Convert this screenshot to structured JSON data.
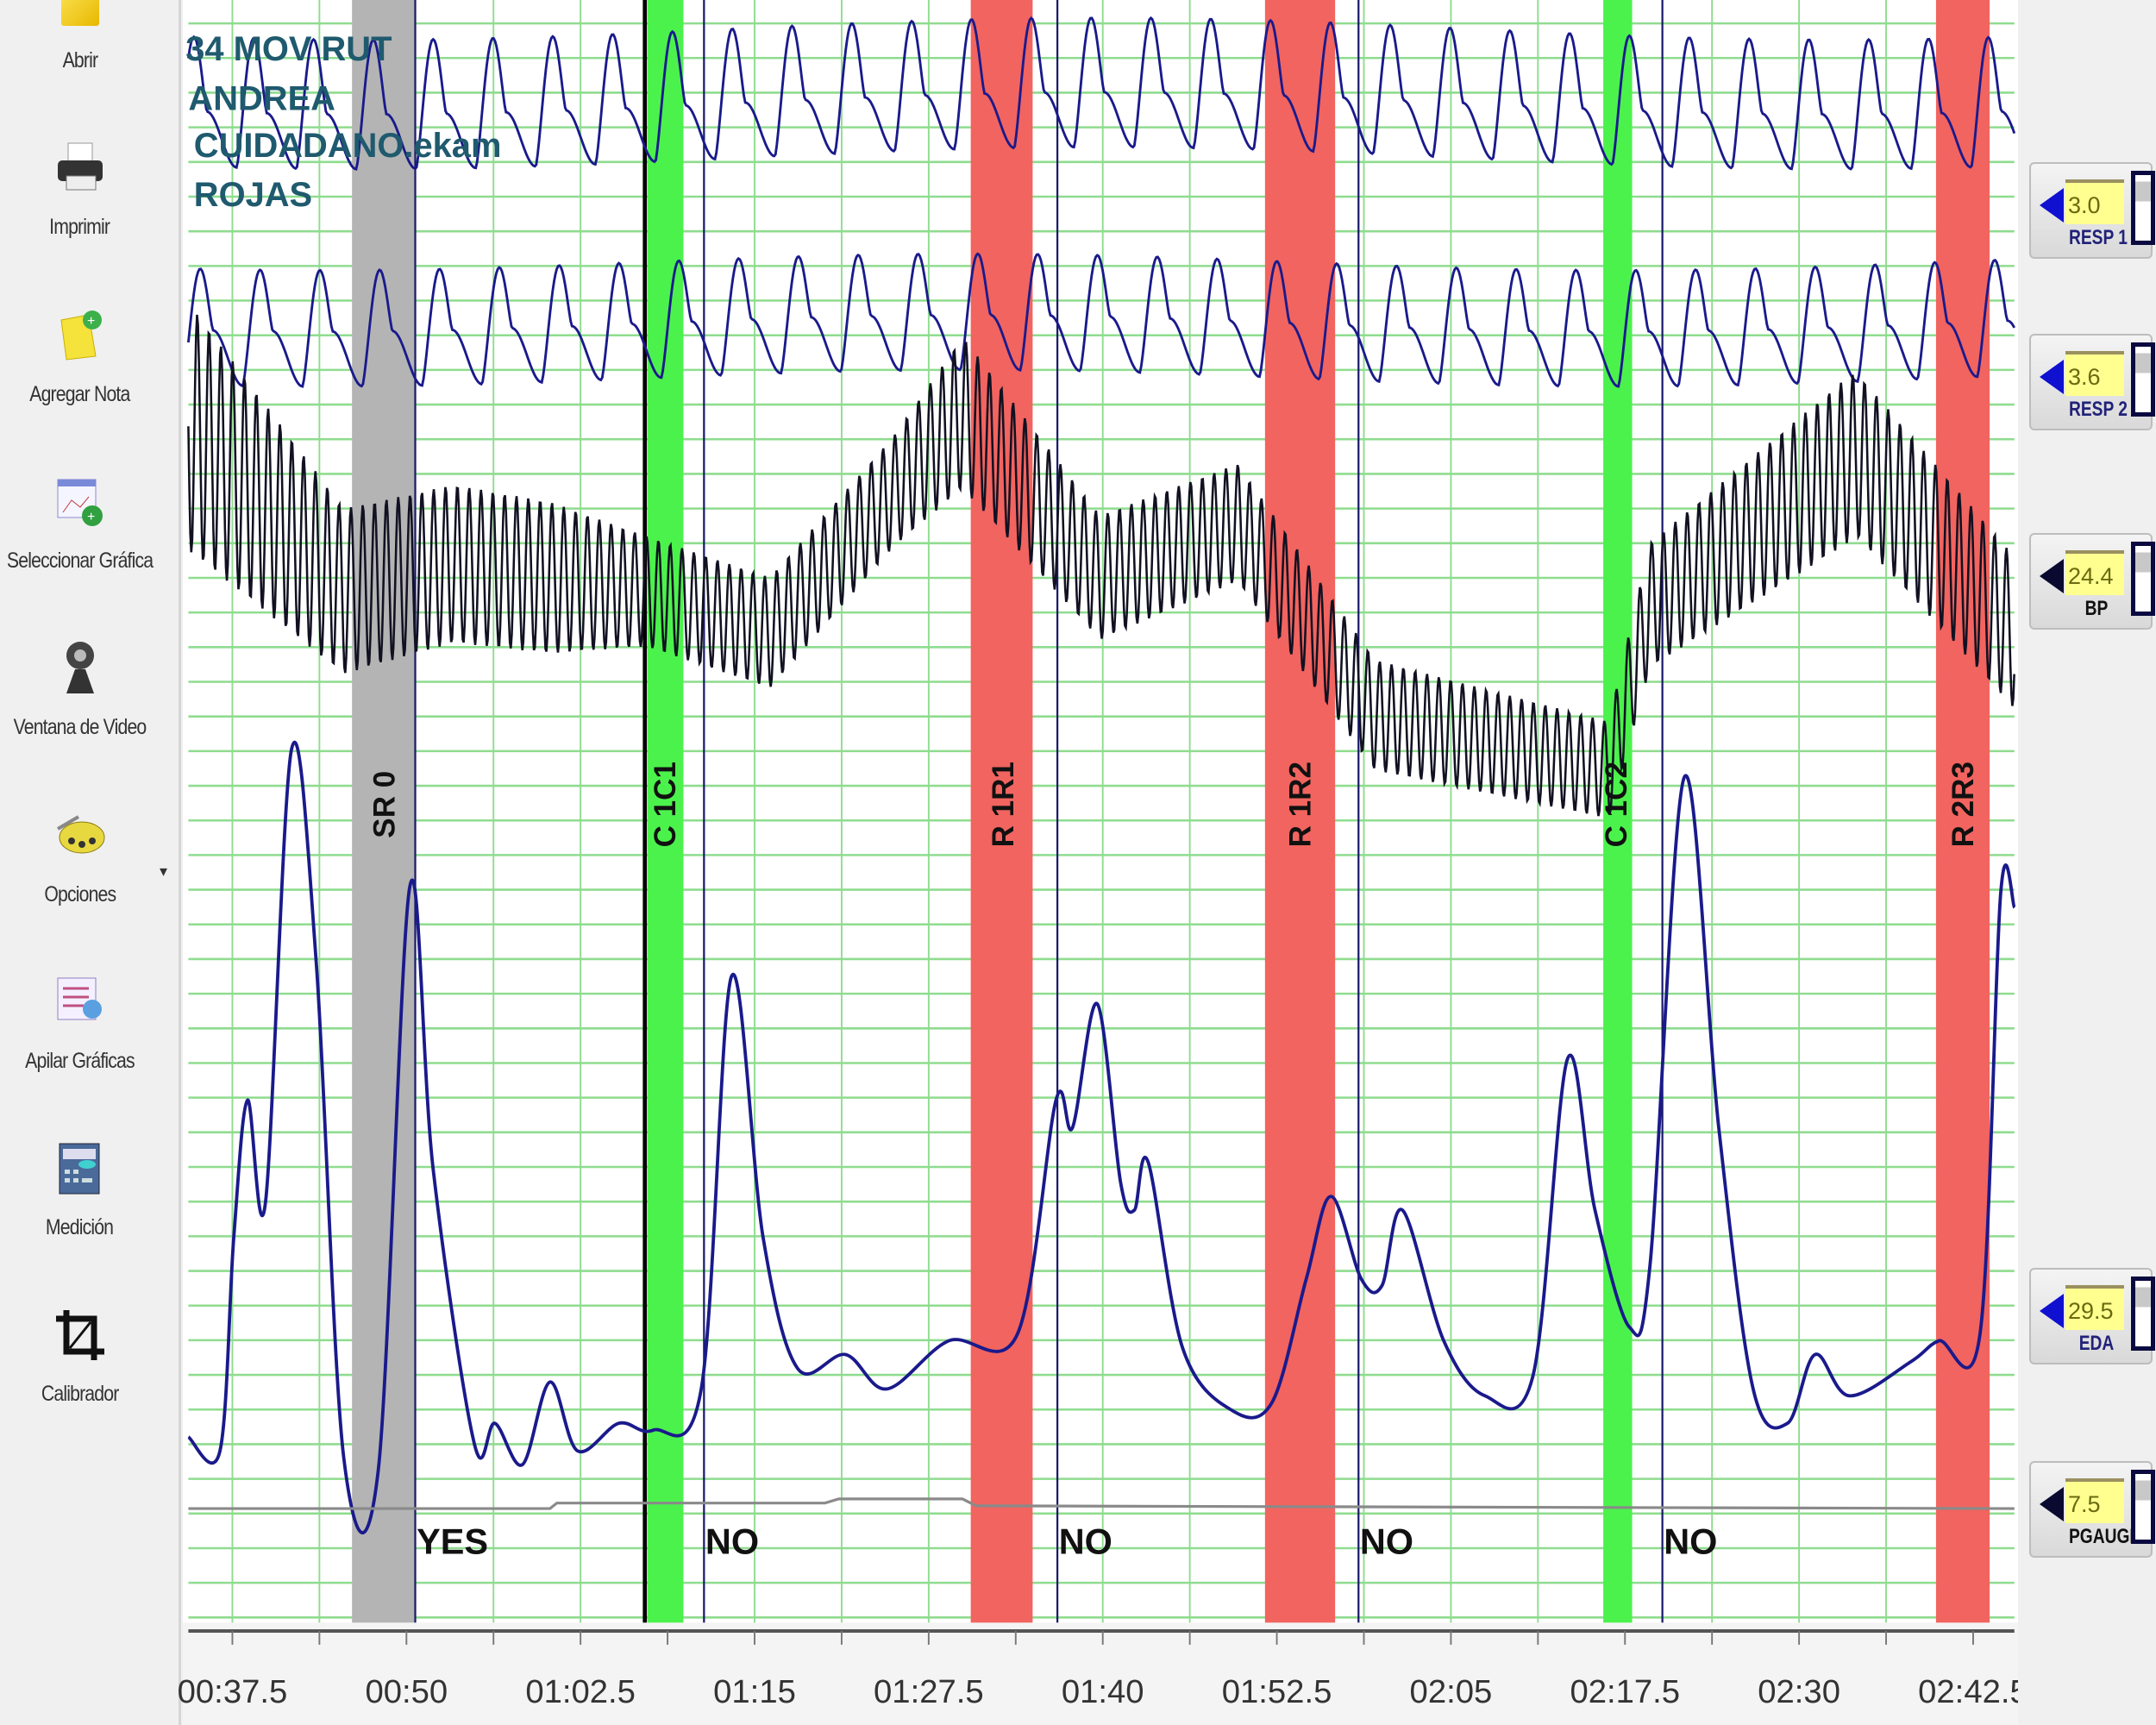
{
  "sidebar": {
    "items": [
      {
        "label": "Abrir",
        "icon": "folder-open-icon"
      },
      {
        "label": "Imprimir",
        "icon": "printer-icon"
      },
      {
        "label": "Agregar Nota",
        "icon": "add-note-icon"
      },
      {
        "label": "Seleccionar Gráfica",
        "icon": "select-chart-icon"
      },
      {
        "label": "Ventana de Video",
        "icon": "webcam-icon"
      },
      {
        "label": "Opciones",
        "icon": "gears-icon"
      },
      {
        "label": "Apilar Gráficas",
        "icon": "stack-charts-icon"
      },
      {
        "label": "Medición",
        "icon": "measurement-icon"
      },
      {
        "label": "Calibrador",
        "icon": "crop-calibrate-icon"
      }
    ]
  },
  "exam_info": [
    "34 MOV RUT",
    "ANDREA",
    "CUIDADANO.ekam",
    "ROJAS"
  ],
  "events": [
    {
      "label": "SR 0",
      "kind": "gray",
      "answer": "YES"
    },
    {
      "label": "C 1C1",
      "kind": "green",
      "answer": "NO"
    },
    {
      "label": "R 1R1",
      "kind": "red",
      "answer": "NO"
    },
    {
      "label": "R 1R2",
      "kind": "red",
      "answer": "NO"
    },
    {
      "label": "C 1C2",
      "kind": "green",
      "answer": "NO"
    },
    {
      "label": "R 2R3",
      "kind": "red",
      "answer": ""
    }
  ],
  "time_axis": [
    "00:37.5",
    "00:50",
    "01:02.5",
    "01:15",
    "01:27.5",
    "01:40",
    "01:52.5",
    "02:05",
    "02:17.5",
    "02:30",
    "02:42.5"
  ],
  "channels": [
    {
      "name": "RESP 1",
      "value": "3.0"
    },
    {
      "name": "RESP 2",
      "value": "3.6"
    },
    {
      "name": "BP",
      "value": "24.4"
    },
    {
      "name": "EDA",
      "value": "29.5"
    },
    {
      "name": "PGAUGE",
      "value": "7.5"
    }
  ],
  "colors": {
    "gray_band": "#b4b4b4",
    "green_band": "#4cf24c",
    "red_band": "#f2645f",
    "grid": "#8fdc8f",
    "trace_blue": "#1a1a8c",
    "trace_bp": "#111122",
    "info_text": "#1f5a6e"
  }
}
